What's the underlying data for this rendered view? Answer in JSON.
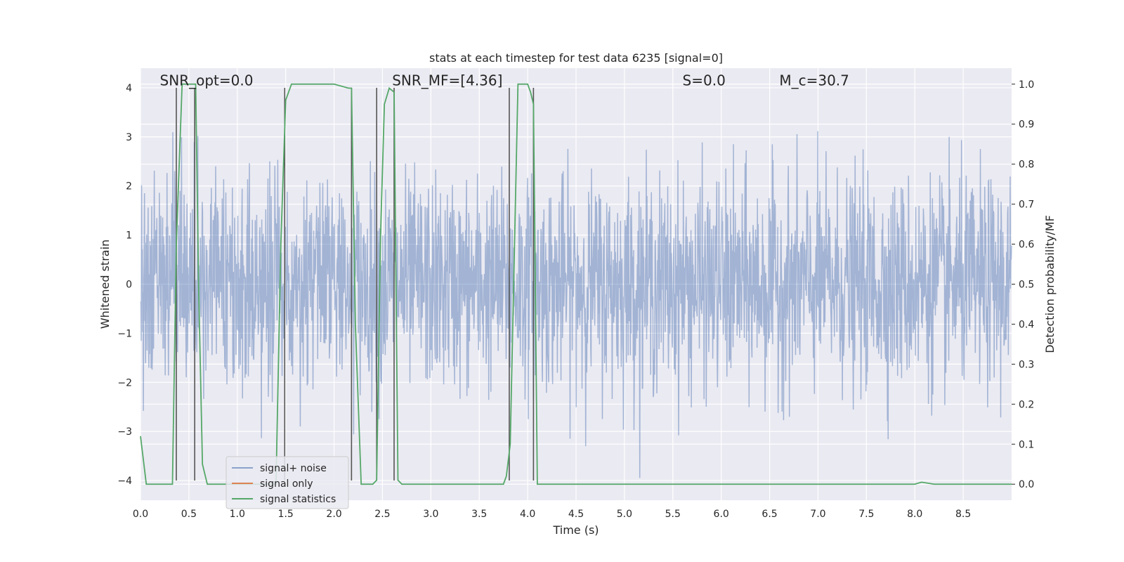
{
  "chart_data": {
    "type": "line",
    "title": "stats at each timestep for test data 6235 [signal=0]",
    "xlabel": "Time (s)",
    "ylabel": "Whitened strain",
    "y2label": "Detection probability/MF",
    "xlim": [
      0,
      9
    ],
    "ylim": [
      -4.4,
      4.4
    ],
    "y2lim": [
      -0.04,
      1.04
    ],
    "xticks": [
      "0.0",
      "0.5",
      "1.0",
      "1.5",
      "2.0",
      "2.5",
      "3.0",
      "3.5",
      "4.0",
      "4.5",
      "5.0",
      "5.5",
      "6.0",
      "6.5",
      "7.0",
      "7.5",
      "8.0",
      "8.5"
    ],
    "xtick_values": [
      0,
      0.5,
      1,
      1.5,
      2,
      2.5,
      3,
      3.5,
      4,
      4.5,
      5,
      5.5,
      6,
      6.5,
      7,
      7.5,
      8,
      8.5
    ],
    "yticks": [
      "−4",
      "−3",
      "−2",
      "−1",
      "0",
      "1",
      "2",
      "3",
      "4"
    ],
    "ytick_values": [
      -4,
      -3,
      -2,
      -1,
      0,
      1,
      2,
      3,
      4
    ],
    "y2ticks": [
      "0.0",
      "0.1",
      "0.2",
      "0.3",
      "0.4",
      "0.5",
      "0.6",
      "0.7",
      "0.8",
      "0.9",
      "1.0"
    ],
    "y2tick_values": [
      0,
      0.1,
      0.2,
      0.3,
      0.4,
      0.5,
      0.6,
      0.7,
      0.8,
      0.9,
      1.0
    ],
    "grid": true,
    "legend_position": "lower-left",
    "annotations": [
      {
        "text": "SNR_opt=0.0",
        "x": 0.2,
        "y": 4.05
      },
      {
        "text": "SNR_MF=[4.36]",
        "x": 2.6,
        "y": 4.05
      },
      {
        "text": "S=0.0",
        "x": 5.6,
        "y": 4.05
      },
      {
        "text": "M_c=30.7",
        "x": 6.6,
        "y": 4.05
      }
    ],
    "series": [
      {
        "name": "signal+ noise",
        "color": "#4c72b0",
        "axis": "left",
        "style": "noise",
        "amplitude_range": [
          -4.0,
          4.0
        ],
        "duration": 9.0
      },
      {
        "name": "signal only",
        "color": "#dd8452",
        "axis": "left",
        "values": []
      },
      {
        "name": "signal statistics",
        "color": "#55a868",
        "axis": "right",
        "x": [
          0.0,
          0.06,
          0.1,
          0.3,
          0.33,
          0.37,
          0.43,
          0.57,
          0.6,
          0.64,
          0.69,
          0.8,
          1.4,
          1.45,
          1.5,
          1.56,
          1.6,
          2.0,
          2.15,
          2.18,
          2.22,
          2.28,
          2.35,
          2.4,
          2.44,
          2.48,
          2.52,
          2.57,
          2.62,
          2.66,
          2.7,
          2.75,
          3.75,
          3.78,
          3.82,
          3.9,
          4.0,
          4.03,
          4.06,
          4.1,
          4.2,
          8.0,
          8.07,
          8.2,
          9.0
        ],
        "values": [
          0.12,
          0.0,
          0.0,
          0.0,
          0.0,
          0.6,
          1.0,
          1.0,
          0.5,
          0.05,
          0.0,
          0.0,
          0.0,
          0.6,
          0.96,
          1.0,
          1.0,
          1.0,
          0.99,
          0.99,
          0.4,
          0.0,
          0.0,
          0.0,
          0.01,
          0.62,
          0.95,
          0.99,
          0.98,
          0.01,
          0.0,
          0.0,
          0.0,
          0.02,
          0.1,
          1.0,
          1.0,
          0.98,
          0.95,
          0.0,
          0.0,
          0.0,
          0.005,
          0.0,
          0.0
        ]
      }
    ],
    "markers": {
      "color": "#555555",
      "x": [
        0.37,
        0.56,
        1.49,
        2.18,
        2.44,
        2.62,
        3.81,
        4.06
      ],
      "y_range": [
        -4.0,
        4.0
      ]
    }
  }
}
